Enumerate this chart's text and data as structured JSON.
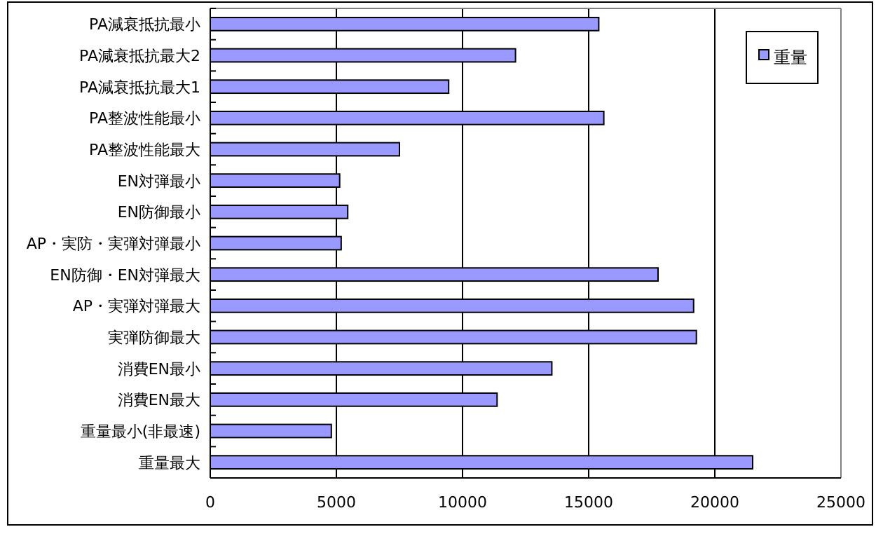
{
  "chart_data": {
    "type": "bar",
    "orientation": "horizontal",
    "categories": [
      "PA減衰抵抗最小",
      "PA減衰抵抗最大2",
      "PA減衰抵抗最大1",
      "PA整波性能最小",
      "PA整波性能最大",
      "EN対弾最小",
      "EN防御最小",
      "AP・実防・実弾対弾最小",
      "EN防御・EN対弾最大",
      "AP・実弾対弾最大",
      "実弾防御最大",
      "消費EN最小",
      "消費EN最大",
      "重量最小(非最速)",
      "重量最大"
    ],
    "series": [
      {
        "name": "重量",
        "color": "#9999ff",
        "values": [
          15400,
          12100,
          9450,
          15600,
          7500,
          5130,
          5450,
          5190,
          17750,
          19160,
          19270,
          13540,
          11370,
          4800,
          21500
        ]
      }
    ],
    "xlim": [
      0,
      25000
    ],
    "xticks": [
      0,
      5000,
      10000,
      15000,
      20000,
      25000
    ],
    "grid": "x",
    "legend": "top right"
  }
}
